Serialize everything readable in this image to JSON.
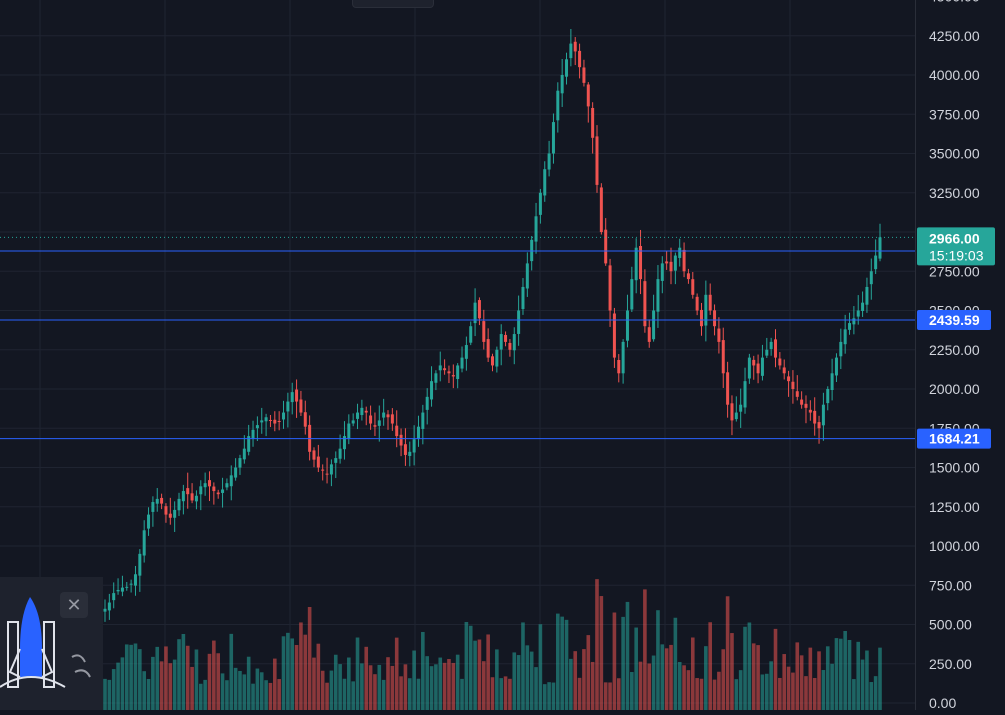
{
  "chart_data": {
    "type": "candlestick",
    "title": "",
    "xlabel": "",
    "ylabel": "",
    "ylim": [
      0,
      4500
    ],
    "y_ticks": [
      "0.00",
      "250.00",
      "500.00",
      "750.00",
      "1000.00",
      "1250.00",
      "1500.00",
      "1750.00",
      "2000.00",
      "2250.00",
      "2500.00",
      "2750.00",
      "3000.00",
      "3250.00",
      "3500.00",
      "3750.00",
      "4000.00",
      "4250.00",
      "4500.00"
    ],
    "last_price": "2966.00",
    "countdown": "15:19:03",
    "last_price_value": 2966,
    "horizontal_levels": [
      {
        "label": "2878.70",
        "value": 2878.7
      },
      {
        "label": "2439.59",
        "value": 2439.59
      },
      {
        "label": "1684.21",
        "value": 1684.21
      }
    ],
    "grid": true,
    "price_path": [
      600,
      640,
      700,
      720,
      735,
      740,
      760,
      820,
      950,
      1100,
      1200,
      1280,
      1300,
      1270,
      1200,
      1180,
      1230,
      1300,
      1350,
      1330,
      1290,
      1320,
      1380,
      1400,
      1380,
      1350,
      1330,
      1360,
      1400,
      1450,
      1500,
      1560,
      1620,
      1700,
      1740,
      1770,
      1800,
      1820,
      1800,
      1780,
      1790,
      1850,
      1920,
      1980,
      1920,
      1850,
      1760,
      1600,
      1550,
      1500,
      1480,
      1460,
      1520,
      1560,
      1620,
      1700,
      1780,
      1800,
      1850,
      1880,
      1850,
      1780,
      1760,
      1800,
      1850,
      1820,
      1780,
      1700,
      1640,
      1580,
      1600,
      1680,
      1760,
      1850,
      1950,
      2050,
      2100,
      2150,
      2120,
      2100,
      2080,
      2150,
      2200,
      2280,
      2400,
      2550,
      2450,
      2300,
      2200,
      2150,
      2250,
      2350,
      2300,
      2250,
      2350,
      2500,
      2650,
      2800,
      2950,
      3100,
      3250,
      3400,
      3500,
      3700,
      3900,
      4000,
      4100,
      4200,
      4150,
      4050,
      3950,
      3800,
      3600,
      3300,
      3000,
      2800,
      2500,
      2200,
      2100,
      2300,
      2500,
      2700,
      2900,
      2700,
      2400,
      2300,
      2500,
      2700,
      2800,
      2800,
      2750,
      2850,
      2900,
      2750,
      2700,
      2600,
      2500,
      2400,
      2600,
      2500,
      2400,
      2300,
      2100,
      1900,
      1800,
      1850,
      1900,
      2050,
      2200,
      2150,
      2100,
      2200,
      2250,
      2300,
      2200,
      2150,
      2100,
      2050,
      2000,
      1950,
      1900,
      1880,
      1850,
      1780,
      1750,
      1900,
      2000,
      2100,
      2200,
      2300,
      2380,
      2420,
      2450,
      2500,
      2550,
      2650,
      2750,
      2850,
      2966
    ],
    "volume_scale": 500
  },
  "widget": {
    "close_symbol": "✕"
  }
}
